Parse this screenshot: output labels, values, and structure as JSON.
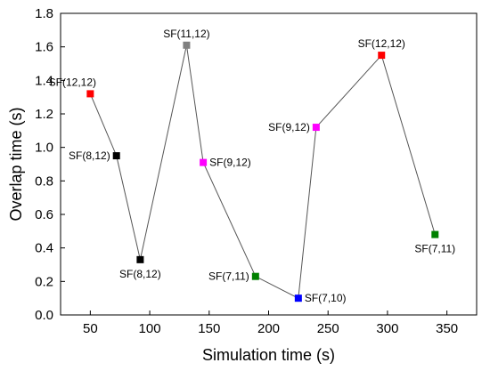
{
  "chart_data": {
    "type": "line",
    "title": "",
    "xlabel": "Simulation time (s)",
    "ylabel": "Overlap time (s)",
    "xlim": [
      25,
      375
    ],
    "ylim": [
      0,
      1.8
    ],
    "xticks": [
      50,
      100,
      150,
      200,
      250,
      300,
      350
    ],
    "yticks": [
      0.0,
      0.2,
      0.4,
      0.6,
      0.8,
      1.0,
      1.2,
      1.4,
      1.6,
      1.8
    ],
    "xtick_labels": [
      "50",
      "100",
      "150",
      "200",
      "250",
      "300",
      "350"
    ],
    "ytick_labels": [
      "0.0",
      "0.2",
      "0.4",
      "0.6",
      "0.8",
      "1.0",
      "1.2",
      "1.4",
      "1.6",
      "1.8"
    ],
    "grid": false,
    "series": [
      {
        "points": [
          {
            "x": 50,
            "y": 1.32,
            "label": "SF(12,12)",
            "color": "#ff0000",
            "label_pos": "above-left"
          },
          {
            "x": 72,
            "y": 0.95,
            "label": "SF(8,12)",
            "color": "#000000",
            "label_pos": "left"
          },
          {
            "x": 92,
            "y": 0.33,
            "label": "SF(8,12)",
            "color": "#000000",
            "label_pos": "below"
          },
          {
            "x": 131,
            "y": 1.61,
            "label": "SF(11,12)",
            "color": "#808080",
            "label_pos": "above"
          },
          {
            "x": 145,
            "y": 0.91,
            "label": "SF(9,12)",
            "color": "#ff00ff",
            "label_pos": "right"
          },
          {
            "x": 189,
            "y": 0.23,
            "label": "SF(7,11)",
            "color": "#008000",
            "label_pos": "left"
          },
          {
            "x": 225,
            "y": 0.1,
            "label": "SF(7,10)",
            "color": "#0000ff",
            "label_pos": "right"
          },
          {
            "x": 240,
            "y": 1.12,
            "label": "SF(9,12)",
            "color": "#ff00ff",
            "label_pos": "left"
          },
          {
            "x": 295,
            "y": 1.55,
            "label": "SF(12,12)",
            "color": "#ff0000",
            "label_pos": "above"
          },
          {
            "x": 340,
            "y": 0.48,
            "label": "SF(7,11)",
            "color": "#008000",
            "label_pos": "below"
          }
        ]
      }
    ]
  }
}
